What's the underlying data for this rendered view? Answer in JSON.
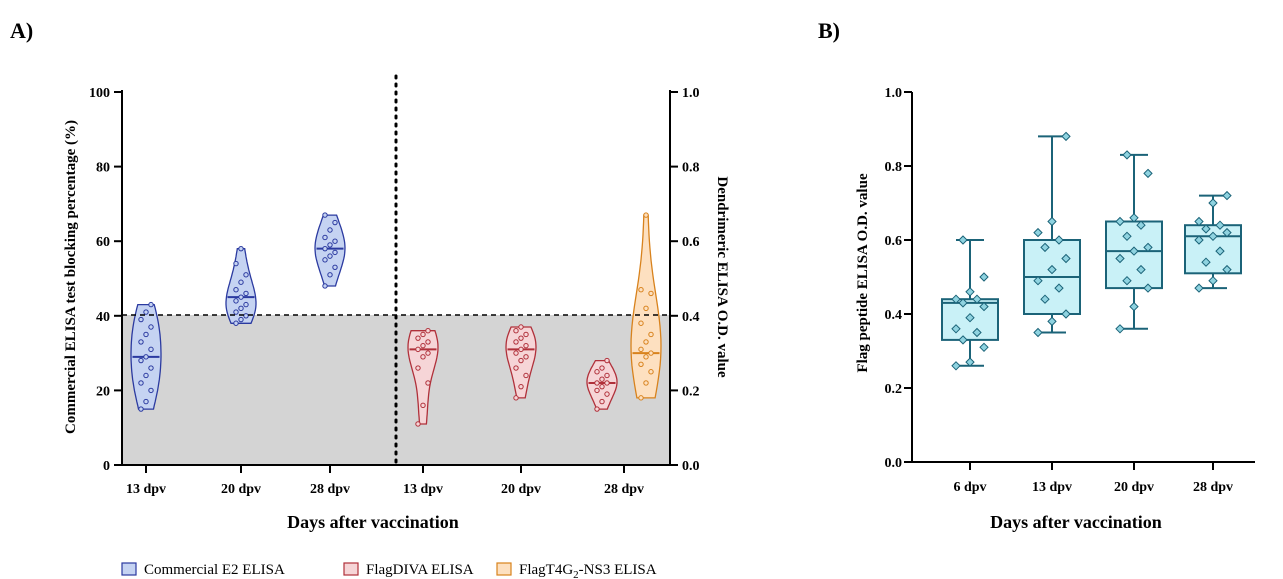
{
  "panels": {
    "a": {
      "label": "A)"
    },
    "b": {
      "label": "B)"
    }
  },
  "legend": {
    "items": [
      {
        "label": "Commercial E2 ELISA",
        "fill": "#c5d3f2",
        "stroke": "#2b3aa0"
      },
      {
        "label": "FlagDIVA ELISA",
        "fill": "#f6d5d7",
        "stroke": "#b0303a"
      },
      {
        "label": "FlagT4G2-NS3 ELISA",
        "label_main": "FlagT4G",
        "label_sub": "2",
        "label_tail": "-NS3 ELISA",
        "fill": "#fde0c0",
        "stroke": "#d8821c"
      }
    ]
  },
  "chart_data": [
    {
      "type": "violin",
      "panel": "A)",
      "xlabel": "Days after vaccination",
      "ylabel": "Commercial ELISA test blocking percentage (%)",
      "ylabel_right": "Dendrimeric ELISA O.D. value",
      "ylim": [
        0,
        100
      ],
      "ylim_right": [
        0.0,
        1.0
      ],
      "yticks": [
        "0",
        "20",
        "40",
        "60",
        "80",
        "100"
      ],
      "yticks_right": [
        "0.0",
        "0.2",
        "0.4",
        "0.6",
        "0.8",
        "1.0"
      ],
      "cutoff": 40,
      "categories": [
        "13 dpv",
        "20 dpv",
        "28 dpv",
        "13 dpv",
        "20 dpv",
        "28 dpv"
      ],
      "series": [
        {
          "name": "Commercial E2 ELISA",
          "axis": "left",
          "color": "#2b3aa0",
          "fill": "#c5d3f2",
          "groups": [
            {
              "category": "13 dpv",
              "median": 29,
              "min": 15,
              "max": 43,
              "points": [
                15,
                17,
                20,
                22,
                24,
                26,
                28,
                29,
                31,
                33,
                35,
                37,
                39,
                41,
                43
              ]
            },
            {
              "category": "20 dpv",
              "median": 45,
              "min": 38,
              "max": 58,
              "points": [
                38,
                39,
                40,
                41,
                42,
                43,
                44,
                45,
                46,
                47,
                49,
                51,
                54,
                58
              ]
            },
            {
              "category": "28 dpv",
              "median": 58,
              "min": 48,
              "max": 67,
              "points": [
                48,
                51,
                53,
                55,
                56,
                57,
                58,
                59,
                60,
                61,
                63,
                65,
                67
              ]
            }
          ]
        },
        {
          "name": "FlagDIVA ELISA",
          "axis": "right",
          "color": "#b0303a",
          "fill": "#f6d5d7",
          "groups": [
            {
              "category": "13 dpv",
              "median": 0.31,
              "min": 0.11,
              "max": 0.36,
              "points": [
                0.11,
                0.16,
                0.22,
                0.26,
                0.29,
                0.3,
                0.31,
                0.32,
                0.33,
                0.34,
                0.35,
                0.36
              ]
            },
            {
              "category": "20 dpv",
              "median": 0.31,
              "min": 0.18,
              "max": 0.37,
              "points": [
                0.18,
                0.21,
                0.24,
                0.26,
                0.28,
                0.29,
                0.3,
                0.31,
                0.32,
                0.33,
                0.34,
                0.35,
                0.36,
                0.37
              ]
            }
          ]
        },
        {
          "name": "FlagT4G2-NS3 ELISA",
          "axis": "right",
          "color": "#d8821c",
          "fill": "#fde0c0",
          "groups": [
            {
              "category": "28 dpv",
              "median": 0.3,
              "min": 0.18,
              "max": 0.67,
              "points": [
                0.18,
                0.22,
                0.25,
                0.27,
                0.29,
                0.3,
                0.31,
                0.33,
                0.35,
                0.38,
                0.42,
                0.46,
                0.47,
                0.67
              ]
            }
          ]
        }
      ],
      "extra_groups": [
        {
          "series": "FlagDIVA ELISA",
          "category": "28 dpv",
          "median": 0.22,
          "min": 0.15,
          "max": 0.28,
          "points": [
            0.15,
            0.17,
            0.19,
            0.2,
            0.21,
            0.22,
            0.22,
            0.23,
            0.24,
            0.25,
            0.26,
            0.28
          ]
        }
      ]
    },
    {
      "type": "box",
      "panel": "B)",
      "xlabel": "Days after vaccination",
      "ylabel": "Flag peptide ELISA O.D. value",
      "ylim": [
        0.0,
        1.0
      ],
      "yticks": [
        "0.0",
        "0.2",
        "0.4",
        "0.6",
        "0.8",
        "1.0"
      ],
      "categories": [
        "6 dpv",
        "13 dpv",
        "20 dpv",
        "28 dpv"
      ],
      "color": "#1b6378",
      "fill": "#c9f1f7",
      "boxes": [
        {
          "category": "6 dpv",
          "min": 0.26,
          "q1": 0.33,
          "median": 0.43,
          "q3": 0.44,
          "max": 0.6,
          "points": [
            0.26,
            0.27,
            0.31,
            0.33,
            0.35,
            0.36,
            0.39,
            0.42,
            0.43,
            0.44,
            0.44,
            0.46,
            0.5,
            0.6
          ]
        },
        {
          "category": "13 dpv",
          "min": 0.35,
          "q1": 0.4,
          "median": 0.5,
          "q3": 0.6,
          "max": 0.88,
          "points": [
            0.35,
            0.38,
            0.4,
            0.44,
            0.47,
            0.49,
            0.52,
            0.55,
            0.58,
            0.6,
            0.62,
            0.65,
            0.88
          ]
        },
        {
          "category": "20 dpv",
          "min": 0.36,
          "q1": 0.47,
          "median": 0.57,
          "q3": 0.65,
          "max": 0.83,
          "points": [
            0.36,
            0.42,
            0.47,
            0.49,
            0.52,
            0.55,
            0.57,
            0.58,
            0.61,
            0.64,
            0.65,
            0.66,
            0.78,
            0.83
          ]
        },
        {
          "category": "28 dpv",
          "min": 0.47,
          "q1": 0.51,
          "median": 0.61,
          "q3": 0.64,
          "max": 0.72,
          "points": [
            0.47,
            0.49,
            0.52,
            0.54,
            0.57,
            0.6,
            0.61,
            0.62,
            0.63,
            0.64,
            0.65,
            0.7,
            0.72
          ]
        }
      ]
    }
  ]
}
